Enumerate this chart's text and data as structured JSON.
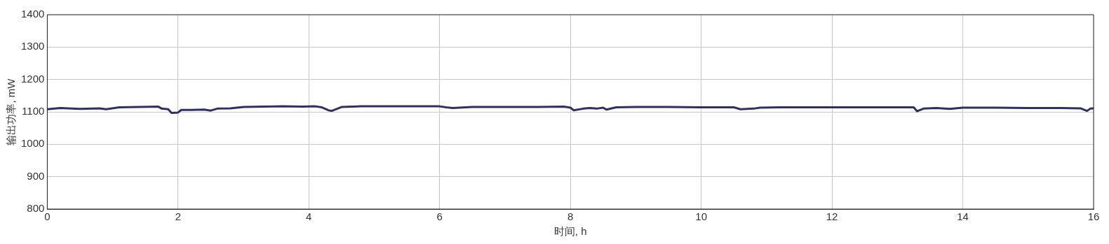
{
  "chart_data": {
    "type": "line",
    "xlabel": "时间, h",
    "ylabel": "输出功率, mW",
    "xlim": [
      0,
      16
    ],
    "xticks": [
      0,
      2,
      4,
      6,
      8,
      10,
      12,
      14,
      16
    ],
    "ylim": [
      800,
      1400
    ],
    "yticks": [
      800,
      900,
      1000,
      1100,
      1200,
      1300,
      1400
    ],
    "grid": true,
    "legend": false,
    "marker": "none",
    "line_style": "solid",
    "series": [
      {
        "color": "#2e3160",
        "x": [
          0,
          0.2,
          0.5,
          0.8,
          0.9,
          1.1,
          1.4,
          1.7,
          1.75,
          1.85,
          1.9,
          2.0,
          2.05,
          2.2,
          2.4,
          2.5,
          2.6,
          2.8,
          3.0,
          3.3,
          3.6,
          3.9,
          4.1,
          4.2,
          4.3,
          4.35,
          4.5,
          4.8,
          5.2,
          5.6,
          6.0,
          6.1,
          6.2,
          6.5,
          7.0,
          7.5,
          7.9,
          8.0,
          8.05,
          8.2,
          8.3,
          8.4,
          8.5,
          8.55,
          8.7,
          9.0,
          9.5,
          10.0,
          10.5,
          10.6,
          10.8,
          10.9,
          11.2,
          11.5,
          12.0,
          12.5,
          13.0,
          13.25,
          13.3,
          13.4,
          13.6,
          13.8,
          14.0,
          14.5,
          15.0,
          15.5,
          15.8,
          15.9,
          15.95,
          16.0
        ],
        "values": [
          1108,
          1112,
          1109,
          1111,
          1108,
          1114,
          1115,
          1116,
          1110,
          1108,
          1097,
          1098,
          1106,
          1106,
          1107,
          1104,
          1110,
          1111,
          1115,
          1116,
          1117,
          1116,
          1117,
          1114,
          1105,
          1103,
          1115,
          1117,
          1117,
          1117,
          1117,
          1114,
          1112,
          1115,
          1115,
          1115,
          1116,
          1113,
          1105,
          1110,
          1112,
          1110,
          1113,
          1107,
          1114,
          1115,
          1115,
          1114,
          1114,
          1108,
          1110,
          1113,
          1114,
          1114,
          1114,
          1114,
          1114,
          1114,
          1102,
          1110,
          1112,
          1109,
          1113,
          1113,
          1112,
          1112,
          1111,
          1103,
          1110,
          1111
        ]
      }
    ]
  }
}
